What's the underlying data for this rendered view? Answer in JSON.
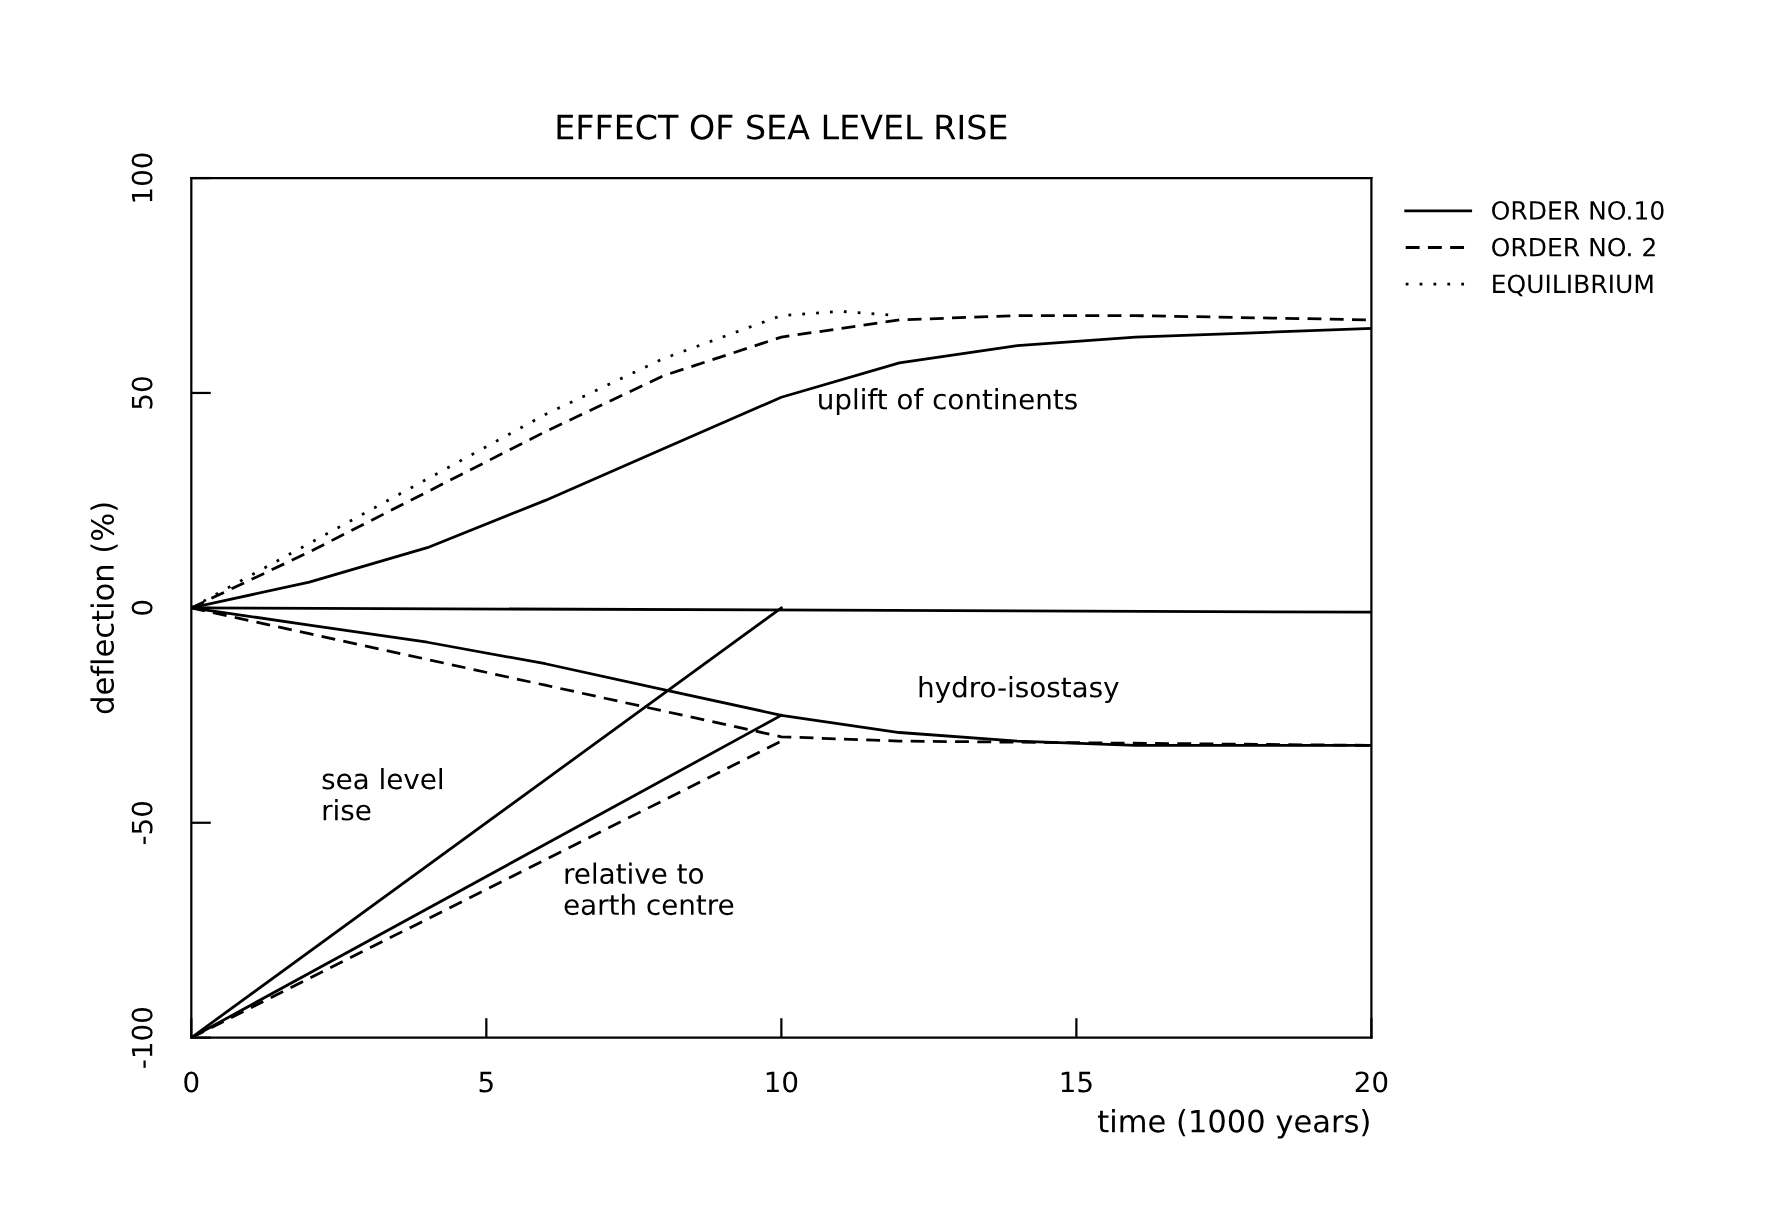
{
  "chart_data": {
    "type": "line",
    "title": "EFFECT OF SEA LEVEL RISE",
    "xlabel": "time (1000 years)",
    "ylabel": "deflection (%)",
    "xlim": [
      0,
      20
    ],
    "ylim": [
      -100,
      100
    ],
    "xticks": [
      0,
      5,
      10,
      15,
      20
    ],
    "yticks": [
      -100,
      -50,
      0,
      50,
      100
    ],
    "grid": false,
    "legend": "top right",
    "marker": "none",
    "series": [
      {
        "name": "ORDER NO.10",
        "color": "#000000",
        "line_style": "solid",
        "x": [
          0,
          2,
          4,
          6,
          8,
          10,
          12,
          14,
          16,
          18,
          20
        ],
        "values": [
          0,
          6,
          14,
          25,
          37,
          49,
          57,
          61,
          63,
          64,
          65
        ]
      },
      {
        "name": "ORDER NO. 2",
        "color": "#000000",
        "line_style": "dashed",
        "x": [
          0,
          2,
          4,
          6,
          8,
          10,
          12,
          14,
          16,
          20
        ],
        "values": [
          0,
          13,
          27,
          41,
          54,
          63,
          67,
          68,
          68,
          67
        ]
      },
      {
        "name": "EQUILIBRIUM",
        "color": "#000000",
        "line_style": "dotted",
        "x": [
          0,
          2,
          4,
          6,
          8,
          10,
          11,
          12
        ],
        "values": [
          0,
          15,
          30,
          45,
          58,
          68,
          69,
          68
        ]
      },
      {
        "color": "#000000",
        "line_style": "solid",
        "x": [
          0,
          20
        ],
        "values": [
          0,
          -1
        ]
      },
      {
        "color": "#000000",
        "line_style": "solid",
        "x": [
          0,
          2,
          4,
          6,
          8,
          10,
          12,
          14,
          16,
          20
        ],
        "values": [
          0,
          -4,
          -8,
          -13,
          -19,
          -25,
          -29,
          -31,
          -32,
          -32
        ]
      },
      {
        "color": "#000000",
        "line_style": "dashed",
        "x": [
          0,
          2,
          4,
          6,
          8,
          10,
          12,
          20
        ],
        "values": [
          0,
          -6,
          -12,
          -18,
          -24,
          -30,
          -31,
          -32
        ]
      },
      {
        "color": "#000000",
        "line_style": "solid",
        "x": [
          0,
          10
        ],
        "values": [
          -100,
          0
        ]
      },
      {
        "color": "#000000",
        "line_style": "solid",
        "x": [
          0,
          10
        ],
        "values": [
          -100,
          -25
        ]
      },
      {
        "color": "#000000",
        "line_style": "dashed",
        "x": [
          0,
          10
        ],
        "values": [
          -100,
          -31
        ]
      }
    ],
    "annotations": [
      "uplift of continents",
      "hydro-isostasy",
      "sea level\nrise",
      "relative to\nearth centre"
    ]
  }
}
